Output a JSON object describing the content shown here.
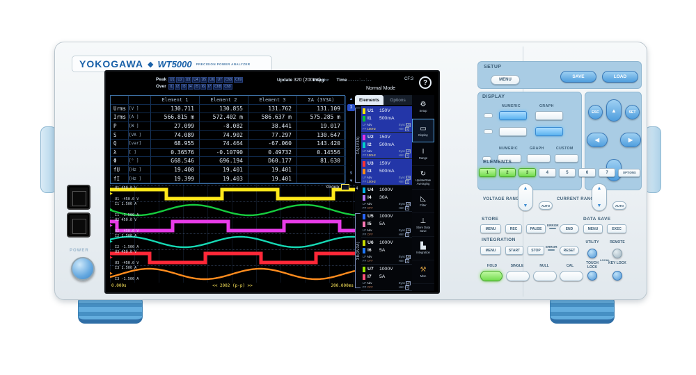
{
  "brand": {
    "maker": "YOKOGAWA",
    "diamond": "◆",
    "model": "WT5000",
    "tagline": "PRECISION POWER ANALYZER"
  },
  "left_side": {
    "power_label": "POWER"
  },
  "screen": {
    "status": {
      "peak_label": "Peak",
      "over_label": "Over",
      "peak_tokens": [
        "U1",
        "U2",
        "U3",
        "U4",
        "U5",
        "U6",
        "U7",
        "Ch8",
        "Ch9"
      ],
      "over_tokens": [
        "I1",
        "I2",
        "I3",
        "I4",
        "I5",
        "I6",
        "I7",
        "Ch8",
        "Ch9"
      ],
      "update_label": "Update",
      "update_value": "320 (200ms)",
      "update_suffix": "DF/F",
      "integ_label": "Integ:",
      "time_label": "Time",
      "time_value": "-----:--:--",
      "mode": "Normal Mode",
      "cf_value": "CF:3",
      "help_glyph": "?"
    },
    "table": {
      "columns": [
        "Element 1",
        "Element 2",
        "Element 3",
        "ΣA (3V3A)"
      ],
      "rows": [
        {
          "param": "Urms",
          "unit": "[V  ]",
          "values": [
            "130.711",
            "130.855",
            "131.762",
            "131.109"
          ]
        },
        {
          "param": "Irms",
          "unit": "[A  ]",
          "values": [
            "566.815 m",
            "572.402 m",
            "586.637 m",
            "575.285 m"
          ]
        },
        {
          "param": "P",
          "unit": "[W  ]",
          "values": [
            "27.099",
            "-8.082",
            "38.441",
            "19.017"
          ]
        },
        {
          "param": "S",
          "unit": "[VA ]",
          "values": [
            "74.089",
            "74.902",
            "77.297",
            "130.647"
          ]
        },
        {
          "param": "Q",
          "unit": "[var]",
          "values": [
            "68.955",
            "74.464",
            "-67.060",
            "143.420"
          ]
        },
        {
          "param": "λ",
          "unit": "[   ]",
          "values": [
            "0.36576",
            "-0.10790",
            "0.49732",
            "0.14556"
          ]
        },
        {
          "param": "Φ",
          "unit": "[°  ]",
          "values": [
            "G68.546",
            "G96.194",
            "D60.177",
            "81.630"
          ]
        },
        {
          "param": "fU",
          "unit": "[Hz ]",
          "values": [
            "19.400",
            "19.401",
            "19.401",
            ""
          ]
        },
        {
          "param": "fI",
          "unit": "[Hz ]",
          "values": [
            "19.399",
            "19.403",
            "19.401",
            ""
          ]
        }
      ]
    },
    "pager": {
      "up": "▲",
      "current": "1",
      "dots": [
        "·",
        "·"
      ],
      "last": "9",
      "down": "▼"
    },
    "group_label": "Group",
    "waveform_axis": {
      "start": "0.000s",
      "center": "<< 2002 (p-p) >>",
      "end": "200.000ms"
    },
    "waveforms": [
      {
        "ch": "U1",
        "color": "#ffe81a",
        "type": "square",
        "cycles": 2.2,
        "phase": 0.0,
        "top": "U1  450.0 V",
        "bottom": "U1 -450.0 V"
      },
      {
        "ch": "I1",
        "color": "#16cc3e",
        "type": "sine",
        "cycles": 2.2,
        "phase": 0.5,
        "top": "I1  1.500 A",
        "bottom": "I1 -1.500 A"
      },
      {
        "ch": "U2",
        "color": "#e83ce8",
        "type": "square",
        "cycles": 2.2,
        "phase": 0.44,
        "top": "U2  450.0 V",
        "bottom": "U2 -450.0 V"
      },
      {
        "ch": "I2",
        "color": "#16d8b4",
        "type": "sine",
        "cycles": 2.2,
        "phase": 0.08,
        "top": "I2  1.500 A",
        "bottom": "I2 -1.500 A"
      },
      {
        "ch": "U3",
        "color": "#ff2838",
        "type": "square",
        "cycles": 2.2,
        "phase": 0.15,
        "top": "U3  450.0 V",
        "bottom": "U3 -450.0 V"
      },
      {
        "ch": "I3",
        "color": "#ff8c1e",
        "type": "sine",
        "cycles": 2.2,
        "phase": 0.9,
        "top": "I3  1.500 A",
        "bottom": "I3 -1.500 A"
      }
    ],
    "sidebar": {
      "tabs": [
        {
          "label": "Elements",
          "active": true
        },
        {
          "label": "Options",
          "active": false
        }
      ],
      "group_a": "ΣA(3V3A)",
      "group_4": "4",
      "group_b": "ΣB(3V3A)",
      "sub_labels": {
        "lf": "LF",
        "ff": "FF",
        "adv": "Adv",
        "sync": "Sync",
        "hrm": "Hrm",
        "hrm_val": "1"
      },
      "elements": [
        {
          "u": "U1",
          "u_range": "150V",
          "u_color": "#ffe600",
          "i": "I1",
          "i_range": "500mA",
          "i_color": "#00c832",
          "freq": "100Hz",
          "selected": true
        },
        {
          "u": "U2",
          "u_range": "150V",
          "u_color": "#e632e6",
          "i": "I2",
          "i_range": "500mA",
          "i_color": "#00d2c8",
          "freq": "100Hz",
          "selected": true
        },
        {
          "u": "U3",
          "u_range": "150V",
          "u_color": "#ff3232",
          "i": "I3",
          "i_range": "500mA",
          "i_color": "#ff8c14",
          "freq": "100Hz",
          "selected": true
        },
        {
          "u": "U4",
          "u_range": "1000V",
          "u_color": "#00b4e6",
          "i": "I4",
          "i_range": "30A",
          "i_color": "#b478ff",
          "freq": "OFF",
          "selected": false
        },
        {
          "u": "U5",
          "u_range": "1000V",
          "u_color": "#2864ff",
          "i": "I5",
          "i_range": "5A",
          "i_color": "#ff78b4",
          "freq": "OFF",
          "selected": false
        },
        {
          "u": "U6",
          "u_range": "1000V",
          "u_color": "#c8dc00",
          "i": "I6",
          "i_range": "5A",
          "i_color": "#1e78ff",
          "freq": "OFF",
          "selected": false
        },
        {
          "u": "U7",
          "u_range": "1000V",
          "u_color": "#96e600",
          "i": "I7",
          "i_range": "5A",
          "i_color": "#ff5078",
          "freq": "OFF",
          "selected": false
        }
      ]
    },
    "icon_bar": [
      {
        "name": "setup",
        "label": "Setup",
        "glyph": "⚙",
        "active": false,
        "amber": false
      },
      {
        "name": "display",
        "label": "Display",
        "glyph": "▭",
        "active": true,
        "amber": false
      },
      {
        "name": "range",
        "label": "Range",
        "glyph": "I",
        "active": false,
        "amber": false
      },
      {
        "name": "update-rate-averaging",
        "label": "UpdateRate Averaging",
        "glyph": "↻",
        "active": false,
        "amber": false
      },
      {
        "name": "filter",
        "label": "Filter",
        "glyph": "◺",
        "active": false,
        "amber": false
      },
      {
        "name": "store-data-save",
        "label": "Store Data Save",
        "glyph": "⊥",
        "active": false,
        "amber": false
      },
      {
        "name": "integration",
        "label": "Integration",
        "glyph": "▙",
        "active": false,
        "amber": false
      },
      {
        "name": "misc",
        "label": "Misc",
        "glyph": "⚒",
        "active": false,
        "amber": true
      }
    ]
  },
  "rp": {
    "setup": {
      "label": "SETUP",
      "menu": "MENU",
      "save": "SAVE",
      "load": "LOAD"
    },
    "display": {
      "label": "DISPLAY",
      "g1": [
        "NUMERIC",
        "GRAPH"
      ],
      "g2": [
        "NUMERIC",
        "GRAPH",
        "CUSTOM"
      ]
    },
    "nav": {
      "esc": "ESC",
      "set": "SET",
      "up": "▲",
      "left": "◀",
      "right": "▶",
      "down": "▼"
    },
    "elements": {
      "label": "ELEMENTS",
      "buttons": [
        "1",
        "2",
        "3",
        "4",
        "5",
        "6",
        "7"
      ],
      "options": "OPTIONS",
      "lit_count": 3
    },
    "voltage_range": {
      "label": "VOLTAGE RANGE",
      "auto": "AUTO",
      "up": "▲",
      "down": "▼"
    },
    "current_range": {
      "label": "CURRENT RANGE",
      "auto": "AUTO",
      "up": "▲",
      "down": "▼"
    },
    "store": {
      "label": "STORE",
      "menu": "MENU",
      "rec": "REC",
      "pause": "PAUSE",
      "error": "ERROR",
      "end": "END"
    },
    "data_save": {
      "label": "DATA SAVE",
      "menu": "MENU",
      "exec": "EXEC"
    },
    "integration": {
      "label": "INTEGRATION",
      "menu": "MENU",
      "start": "START",
      "stop": "STOP",
      "error": "ERROR",
      "reset": "RESET"
    },
    "utility": "UTILITY",
    "remote": "REMOTE",
    "local": "LOCAL",
    "bottom": {
      "hold": "HOLD",
      "single": "SINGLE",
      "null_btn": "NULL",
      "cal": "CAL",
      "touch_lock": "TOUCH LOCK",
      "key_lock": "KEY LOCK"
    }
  }
}
